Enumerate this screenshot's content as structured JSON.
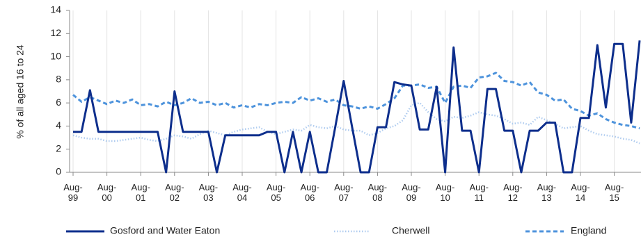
{
  "chart_data": {
    "type": "line",
    "y_label": "% of all aged 16 to 24",
    "categories": [
      "Aug-99",
      null,
      null,
      null,
      "Aug-00",
      null,
      null,
      null,
      "Aug-01",
      null,
      null,
      null,
      "Aug-02",
      null,
      null,
      null,
      "Aug-03",
      null,
      null,
      null,
      "Aug-04",
      null,
      null,
      null,
      "Aug-05",
      null,
      null,
      null,
      "Aug-06",
      null,
      null,
      null,
      "Aug-07",
      null,
      null,
      null,
      "Aug-08",
      null,
      null,
      null,
      "Aug-09",
      null,
      null,
      null,
      "Aug-10",
      null,
      null,
      null,
      "Aug-11",
      null,
      null,
      null,
      "Aug-12",
      null,
      null,
      null,
      "Aug-13",
      null,
      null,
      null,
      "Aug-14",
      null,
      null,
      null,
      "Aug-15",
      null,
      null,
      null
    ],
    "series": [
      {
        "name": "Gosford and Water Eaton",
        "color": "#0d2e8c",
        "style": "solid",
        "values": [
          3.5,
          3.5,
          7.1,
          3.5,
          3.5,
          3.5,
          3.5,
          3.5,
          3.5,
          3.5,
          3.5,
          0,
          7.0,
          3.5,
          3.5,
          3.5,
          3.5,
          0,
          3.2,
          3.2,
          3.2,
          3.2,
          3.2,
          3.5,
          3.5,
          0,
          3.5,
          0,
          3.5,
          0,
          0,
          3.9,
          7.9,
          3.9,
          0,
          0,
          3.9,
          3.9,
          7.8,
          7.6,
          7.5,
          3.7,
          3.7,
          7.4,
          0,
          10.8,
          3.6,
          3.6,
          0,
          7.2,
          7.2,
          3.6,
          3.6,
          0,
          3.6,
          3.6,
          4.3,
          4.3,
          0,
          0,
          4.7,
          4.7,
          11.0,
          5.6,
          11.1,
          11.1,
          4.3,
          11.4
        ]
      },
      {
        "name": "Cherwell",
        "color": "#aecbef",
        "style": "dotted",
        "values": [
          3.2,
          3.0,
          2.9,
          2.9,
          2.7,
          2.7,
          2.8,
          2.9,
          3.0,
          2.8,
          2.7,
          2.9,
          3.2,
          3.1,
          2.9,
          3.3,
          3.6,
          3.4,
          3.2,
          3.5,
          3.7,
          3.8,
          3.9,
          3.5,
          3.3,
          3.5,
          3.7,
          3.6,
          4.1,
          3.9,
          3.8,
          4.0,
          3.7,
          3.6,
          3.6,
          3.2,
          3.4,
          3.8,
          4.0,
          4.5,
          5.8,
          6.0,
          5.2,
          4.6,
          4.4,
          4.8,
          4.7,
          4.9,
          5.2,
          5.0,
          4.9,
          4.6,
          4.2,
          4.3,
          4.1,
          4.8,
          4.5,
          4.2,
          3.8,
          3.9,
          4.0,
          3.6,
          3.3,
          3.2,
          3.1,
          2.9,
          2.8,
          2.5
        ]
      },
      {
        "name": "England",
        "color": "#4d93dc",
        "style": "dashed",
        "values": [
          6.7,
          6.1,
          6.5,
          6.2,
          5.9,
          6.2,
          6.0,
          6.3,
          5.8,
          5.9,
          5.7,
          6.1,
          5.8,
          6.0,
          6.4,
          6.0,
          6.1,
          5.8,
          6.0,
          5.6,
          5.8,
          5.6,
          5.9,
          5.8,
          6.0,
          6.1,
          6.0,
          6.5,
          6.2,
          6.4,
          6.1,
          6.3,
          5.8,
          5.7,
          5.5,
          5.7,
          5.5,
          5.9,
          6.4,
          7.5,
          7.5,
          7.6,
          7.3,
          7.4,
          6.0,
          7.4,
          7.5,
          7.3,
          8.2,
          8.3,
          8.6,
          7.9,
          7.8,
          7.5,
          7.8,
          6.9,
          6.7,
          6.2,
          6.3,
          5.5,
          5.3,
          4.9,
          5.1,
          4.6,
          4.3,
          4.1,
          4.0,
          3.8
        ]
      }
    ],
    "ylim": [
      0,
      14
    ],
    "yticks": [
      0,
      2,
      4,
      6,
      8,
      10,
      12,
      14
    ],
    "x_grid": true,
    "legend": "bottom"
  }
}
